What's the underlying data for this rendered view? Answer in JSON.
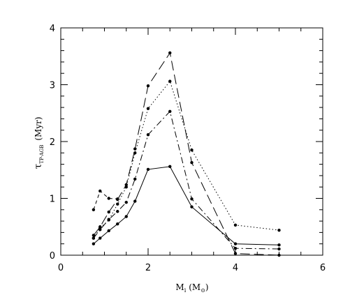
{
  "chart_data": {
    "type": "line",
    "title": "",
    "xlabel": {
      "main": "M",
      "sub": "i",
      "paren": "(M",
      "sun": "⊙",
      "close": ")"
    },
    "ylabel": {
      "main": "τ",
      "sub": "TP-AGB",
      "unit": "(Myr)"
    },
    "xlim": [
      0,
      6
    ],
    "ylim": [
      0,
      4
    ],
    "xticks": [
      "0",
      "2",
      "4",
      "6"
    ],
    "yticks": [
      "0",
      "1",
      "2",
      "3",
      "4"
    ],
    "grid": false,
    "legend": "none",
    "series": [
      {
        "line": "solid",
        "x": [
          0.75,
          0.9,
          1.1,
          1.3,
          1.5,
          1.7,
          2.0,
          2.5,
          3.0,
          4.0,
          5.0
        ],
        "y": [
          0.2,
          0.3,
          0.43,
          0.55,
          0.68,
          0.95,
          1.51,
          1.56,
          0.85,
          0.2,
          0.18
        ]
      },
      {
        "line": "dash-dot",
        "x": [
          0.75,
          0.9,
          1.1,
          1.3,
          1.5,
          1.7,
          2.0,
          2.5,
          3.0,
          4.0,
          5.0
        ],
        "y": [
          0.3,
          0.45,
          0.63,
          0.77,
          0.93,
          1.34,
          2.12,
          2.53,
          0.99,
          0.12,
          0.11
        ]
      },
      {
        "line": "long-dash",
        "x": [
          0.75,
          0.9,
          1.1,
          1.3,
          1.5,
          1.7,
          2.0,
          2.5,
          3.0,
          4.0,
          5.0
        ],
        "y": [
          0.35,
          0.5,
          0.76,
          0.98,
          1.24,
          1.87,
          2.98,
          3.56,
          1.63,
          0.03,
          0.0
        ]
      },
      {
        "line": "dotted",
        "x": [
          0.75,
          0.9,
          1.1,
          1.3,
          1.5,
          1.7,
          2.0,
          2.5,
          3.0,
          4.0,
          5.0
        ],
        "y": [
          0.3,
          0.48,
          0.62,
          0.9,
          1.2,
          1.8,
          2.58,
          3.06,
          1.85,
          0.53,
          0.44
        ]
      },
      {
        "line": "dashed",
        "x": [
          0.75,
          0.9,
          1.1,
          1.3
        ],
        "y": [
          0.8,
          1.13,
          1.0,
          0.99
        ]
      }
    ]
  }
}
